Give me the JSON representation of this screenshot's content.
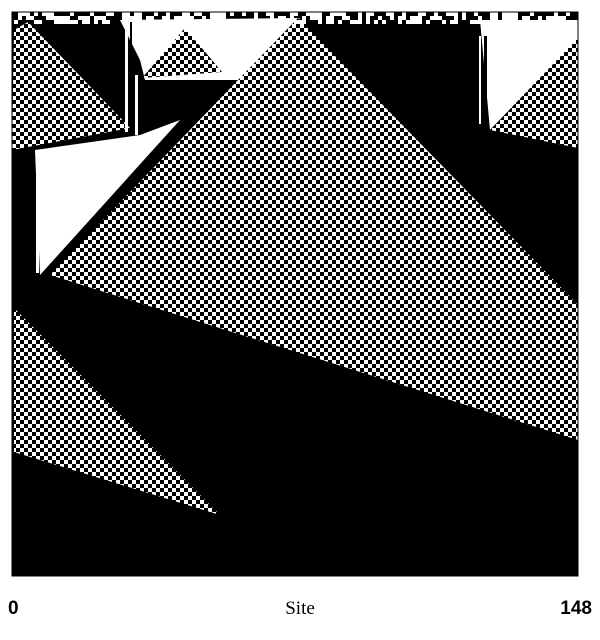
{
  "figure": {
    "axis_label": "Site",
    "tick_left": "0",
    "tick_right": "148",
    "colors": {
      "black": "#000000",
      "white": "#ffffff"
    }
  }
}
